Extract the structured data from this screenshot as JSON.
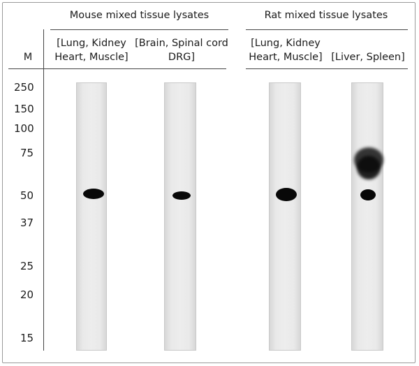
{
  "groups": {
    "mouse": "Mouse mixed tissue lysates",
    "rat": "Rat mixed tissue lysates"
  },
  "marker_header": "M",
  "lanes": [
    {
      "line1": "[Lung, Kidney",
      "line2": "Heart, Muscle]"
    },
    {
      "line1": "[Brain, Spinal cord",
      "line2": "DRG]"
    },
    {
      "line1": "[Lung, Kidney",
      "line2": "Heart, Muscle]"
    },
    {
      "line1": "[Liver, Spleen]",
      "line2": ""
    }
  ],
  "markers": [
    "250",
    "150",
    "100",
    "75",
    "50",
    "37",
    "25",
    "20",
    "15"
  ]
}
